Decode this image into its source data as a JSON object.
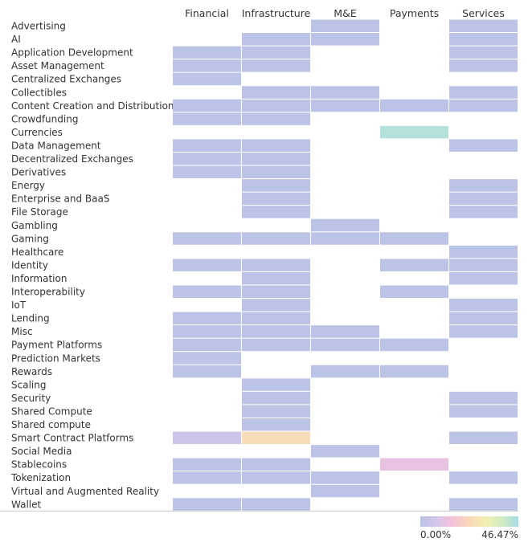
{
  "chart_data": {
    "type": "heatmap",
    "columns": [
      "Financial",
      "Infrastructure",
      "M&E",
      "Payments",
      "Services"
    ],
    "rows": [
      "Advertising",
      "AI",
      "Application Development",
      "Asset Management",
      "Centralized Exchanges",
      "Collectibles",
      "Content Creation and Distribution",
      "Crowdfunding",
      "Currencies",
      "Data Management",
      "Decentralized Exchanges",
      "Derivatives",
      "Energy",
      "Enterprise and BaaS",
      "File Storage",
      "Gambling",
      "Gaming",
      "Healthcare",
      "Identity",
      "Information",
      "Interoperability",
      "IoT",
      "Lending",
      "Misc",
      "Payment Platforms",
      "Prediction Markets",
      "Rewards",
      "Scaling",
      "Security",
      "Shared Compute",
      "Shared compute",
      "Smart Contract Platforms",
      "Social Media",
      "Stablecoins",
      "Tokenization",
      "Virtual and Augmented Reality",
      "Wallet"
    ],
    "values": [
      [
        null,
        null,
        0.5,
        null,
        0.5
      ],
      [
        null,
        0.5,
        0.5,
        null,
        0.5
      ],
      [
        0.5,
        0.5,
        null,
        null,
        0.5
      ],
      [
        0.5,
        0.5,
        null,
        null,
        0.5
      ],
      [
        0.8,
        null,
        null,
        null,
        null
      ],
      [
        null,
        0.5,
        0.5,
        null,
        0.5
      ],
      [
        0.5,
        0.5,
        0.5,
        0.5,
        0.5
      ],
      [
        0.5,
        0.5,
        null,
        null,
        null
      ],
      [
        null,
        null,
        null,
        44.0,
        null
      ],
      [
        0.5,
        0.5,
        null,
        null,
        0.5
      ],
      [
        1.0,
        0.5,
        null,
        null,
        null
      ],
      [
        0.8,
        0.5,
        null,
        null,
        null
      ],
      [
        null,
        0.5,
        null,
        null,
        0.5
      ],
      [
        null,
        0.5,
        null,
        null,
        0.5
      ],
      [
        null,
        0.5,
        null,
        null,
        0.5
      ],
      [
        null,
        null,
        0.5,
        null,
        null
      ],
      [
        0.5,
        0.5,
        0.5,
        0.5,
        null
      ],
      [
        null,
        null,
        null,
        null,
        0.5
      ],
      [
        0.5,
        0.5,
        null,
        0.5,
        0.5
      ],
      [
        null,
        0.5,
        null,
        null,
        0.5
      ],
      [
        0.5,
        0.5,
        null,
        0.5,
        null
      ],
      [
        null,
        0.5,
        null,
        null,
        0.5
      ],
      [
        0.5,
        0.5,
        null,
        null,
        0.5
      ],
      [
        0.5,
        0.5,
        0.5,
        null,
        0.5
      ],
      [
        0.5,
        0.5,
        0.5,
        0.5,
        null
      ],
      [
        0.8,
        null,
        null,
        null,
        null
      ],
      [
        0.5,
        null,
        0.5,
        0.5,
        null
      ],
      [
        null,
        1.0,
        null,
        null,
        null
      ],
      [
        null,
        0.5,
        null,
        null,
        0.5
      ],
      [
        null,
        0.5,
        null,
        null,
        0.5
      ],
      [
        null,
        0.5,
        null,
        null,
        null
      ],
      [
        6.0,
        25.0,
        null,
        null,
        0.5
      ],
      [
        null,
        null,
        0.5,
        null,
        null
      ],
      [
        0.5,
        0.5,
        null,
        12.0,
        null
      ],
      [
        0.5,
        0.5,
        0.5,
        null,
        0.5
      ],
      [
        null,
        null,
        0.5,
        null,
        null
      ],
      [
        0.5,
        0.5,
        null,
        null,
        0.5
      ]
    ],
    "color_range": [
      0.0,
      46.47
    ],
    "color_stops": [
      "#b9c4e6",
      "#d4c4ec",
      "#f6c3d8",
      "#f9d7b8",
      "#f3efb3",
      "#d2ebc1",
      "#a6dce6"
    ],
    "legend": {
      "min_label": "0.00%",
      "max_label": "46.47%",
      "position": "bottom-right"
    },
    "grid": false
  }
}
